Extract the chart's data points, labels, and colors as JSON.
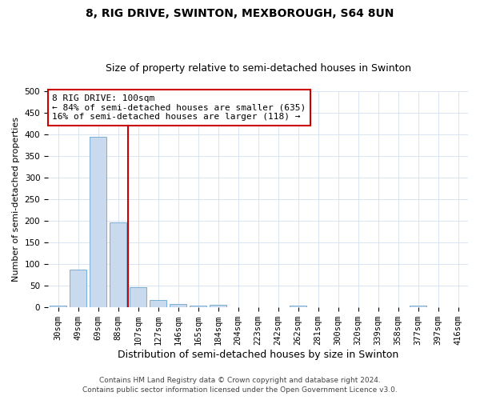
{
  "title": "8, RIG DRIVE, SWINTON, MEXBOROUGH, S64 8UN",
  "subtitle": "Size of property relative to semi-detached houses in Swinton",
  "xlabel": "Distribution of semi-detached houses by size in Swinton",
  "ylabel": "Number of semi-detached properties",
  "categories": [
    "30sqm",
    "49sqm",
    "69sqm",
    "88sqm",
    "107sqm",
    "127sqm",
    "146sqm",
    "165sqm",
    "184sqm",
    "204sqm",
    "223sqm",
    "242sqm",
    "262sqm",
    "281sqm",
    "300sqm",
    "320sqm",
    "339sqm",
    "358sqm",
    "377sqm",
    "397sqm",
    "416sqm"
  ],
  "values": [
    5,
    88,
    395,
    197,
    47,
    17,
    8,
    4,
    6,
    0,
    0,
    0,
    5,
    0,
    0,
    0,
    0,
    0,
    5,
    0,
    0
  ],
  "bar_color": "#c9d9ee",
  "bar_edge_color": "#7bafd4",
  "property_line_color": "#cc0000",
  "annotation_text": "8 RIG DRIVE: 100sqm\n← 84% of semi-detached houses are smaller (635)\n16% of semi-detached houses are larger (118) →",
  "annotation_box_color": "#ffffff",
  "annotation_box_edge_color": "#cc0000",
  "ylim": [
    0,
    500
  ],
  "yticks": [
    0,
    50,
    100,
    150,
    200,
    250,
    300,
    350,
    400,
    450,
    500
  ],
  "footer1": "Contains HM Land Registry data © Crown copyright and database right 2024.",
  "footer2": "Contains public sector information licensed under the Open Government Licence v3.0.",
  "title_fontsize": 10,
  "subtitle_fontsize": 9,
  "xlabel_fontsize": 9,
  "ylabel_fontsize": 8,
  "tick_fontsize": 7.5,
  "annotation_fontsize": 8,
  "footer_fontsize": 6.5,
  "grid_color": "#d5dff0",
  "prop_bar_index": 3
}
